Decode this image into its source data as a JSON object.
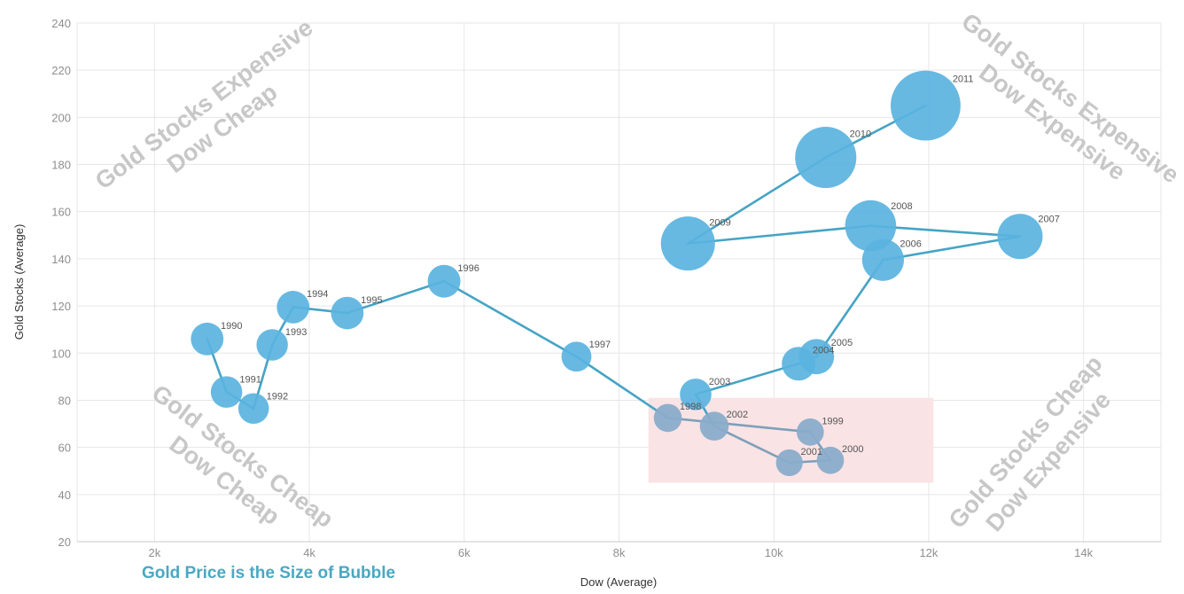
{
  "chart_data": {
    "type": "scatter",
    "title": "",
    "xlabel": "Dow (Average)",
    "ylabel": "Gold Stocks (Average)",
    "xlim": [
      1000,
      15000
    ],
    "ylim": [
      20,
      240
    ],
    "x_ticks": [
      2000,
      4000,
      6000,
      8000,
      10000,
      12000,
      14000
    ],
    "x_tick_labels": [
      "2k",
      "4k",
      "6k",
      "8k",
      "10k",
      "12k",
      "14k"
    ],
    "y_ticks": [
      20,
      40,
      60,
      80,
      100,
      120,
      140,
      160,
      180,
      200,
      220,
      240
    ],
    "y_tick_labels": [
      "20",
      "40",
      "60",
      "80",
      "100",
      "120",
      "140",
      "160",
      "180",
      "200",
      "220",
      "240"
    ],
    "grid": true,
    "size_encoding": "Gold Price",
    "points": [
      {
        "label": "1990",
        "x": 2680,
        "y": 106,
        "size": 385
      },
      {
        "label": "1991",
        "x": 2930,
        "y": 83.5,
        "size": 362
      },
      {
        "label": "1992",
        "x": 3280,
        "y": 76.5,
        "size": 344
      },
      {
        "label": "1993",
        "x": 3520,
        "y": 103.5,
        "size": 360
      },
      {
        "label": "1994",
        "x": 3790,
        "y": 119.5,
        "size": 384
      },
      {
        "label": "1995",
        "x": 4490,
        "y": 117,
        "size": 384
      },
      {
        "label": "1996",
        "x": 5740,
        "y": 130.5,
        "size": 388
      },
      {
        "label": "1997",
        "x": 7450,
        "y": 98.5,
        "size": 331
      },
      {
        "label": "1998",
        "x": 8630,
        "y": 72.5,
        "size": 294
      },
      {
        "label": "1999",
        "x": 10470,
        "y": 66.5,
        "size": 279
      },
      {
        "label": "2000",
        "x": 10730,
        "y": 54.5,
        "size": 279
      },
      {
        "label": "2001",
        "x": 10200,
        "y": 53.5,
        "size": 271
      },
      {
        "label": "2002",
        "x": 9230,
        "y": 69,
        "size": 310
      },
      {
        "label": "2003",
        "x": 8990,
        "y": 82.5,
        "size": 363
      },
      {
        "label": "2004",
        "x": 10320,
        "y": 95.5,
        "size": 409
      },
      {
        "label": "2005",
        "x": 10550,
        "y": 98.5,
        "size": 444
      },
      {
        "label": "2006",
        "x": 11410,
        "y": 139.5,
        "size": 603
      },
      {
        "label": "2007",
        "x": 13180,
        "y": 149.5,
        "size": 695
      },
      {
        "label": "2008",
        "x": 11250,
        "y": 154,
        "size": 872
      },
      {
        "label": "2009",
        "x": 8890,
        "y": 146.5,
        "size": 972
      },
      {
        "label": "2010",
        "x": 10670,
        "y": 183,
        "size": 1225
      },
      {
        "label": "2011",
        "x": 11960,
        "y": 205,
        "size": 1572
      }
    ],
    "series_color": "#45a4c4",
    "point_color": "#5ab3df",
    "highlight_point_color": "#8aaccb",
    "highlight_region": {
      "x": [
        8380,
        12060
      ],
      "y": [
        45,
        81
      ],
      "color": "#f9e3e5"
    },
    "quadrant_labels": [
      {
        "position": "top-left",
        "lines": [
          "Gold Stocks Expensive",
          "Dow Cheap"
        ]
      },
      {
        "position": "top-right",
        "lines": [
          "Gold Stocks Expensive",
          "Dow Expensive"
        ]
      },
      {
        "position": "bottom-left",
        "lines": [
          "Gold Stocks Cheap",
          "Dow Cheap"
        ]
      },
      {
        "position": "bottom-right",
        "lines": [
          "Gold Stocks Cheap",
          "Dow Expensive"
        ]
      }
    ],
    "annotation": {
      "text": "Gold Price is the Size of Bubble",
      "color": "#4aa8c2"
    }
  }
}
